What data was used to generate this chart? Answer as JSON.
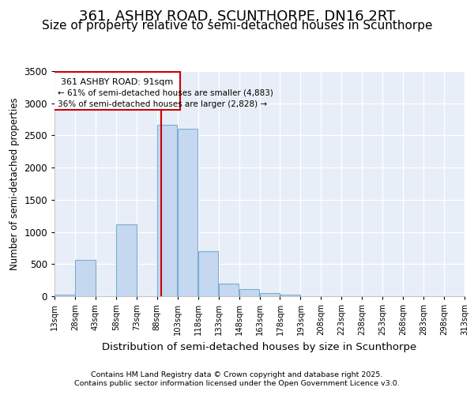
{
  "title": "361, ASHBY ROAD, SCUNTHORPE, DN16 2RT",
  "subtitle": "Size of property relative to semi-detached houses in Scunthorpe",
  "xlabel": "Distribution of semi-detached houses by size in Scunthorpe",
  "ylabel": "Number of semi-detached properties",
  "bar_color": "#c5d8f0",
  "bar_edge_color": "#7aadd4",
  "annotation_box_color": "#cc0000",
  "vline_color": "#cc0000",
  "property_size": 91,
  "annotation_line1": "361 ASHBY ROAD: 91sqm",
  "annotation_line2": "← 61% of semi-detached houses are smaller (4,883)",
  "annotation_line3": "36% of semi-detached houses are larger (2,828) →",
  "footnote1": "Contains HM Land Registry data © Crown copyright and database right 2025.",
  "footnote2": "Contains public sector information licensed under the Open Government Licence v3.0.",
  "bins": [
    13,
    28,
    43,
    58,
    73,
    88,
    103,
    118,
    133,
    148,
    163,
    178,
    193,
    208,
    223,
    238,
    253,
    268,
    283,
    298,
    313
  ],
  "bin_labels": [
    "13sqm",
    "28sqm",
    "43sqm",
    "58sqm",
    "73sqm",
    "88sqm",
    "103sqm",
    "118sqm",
    "133sqm",
    "148sqm",
    "163sqm",
    "178sqm",
    "193sqm",
    "208sqm",
    "223sqm",
    "238sqm",
    "253sqm",
    "268sqm",
    "283sqm",
    "298sqm",
    "313sqm"
  ],
  "heights": [
    30,
    560,
    0,
    1120,
    0,
    2660,
    2600,
    700,
    200,
    110,
    50,
    30,
    0,
    0,
    0,
    0,
    0,
    0,
    0,
    0
  ],
  "ylim": [
    0,
    3500
  ],
  "background_color": "#ffffff",
  "plot_background": "#e8eef8",
  "grid_color": "#ffffff",
  "title_fontsize": 13,
  "subtitle_fontsize": 11
}
